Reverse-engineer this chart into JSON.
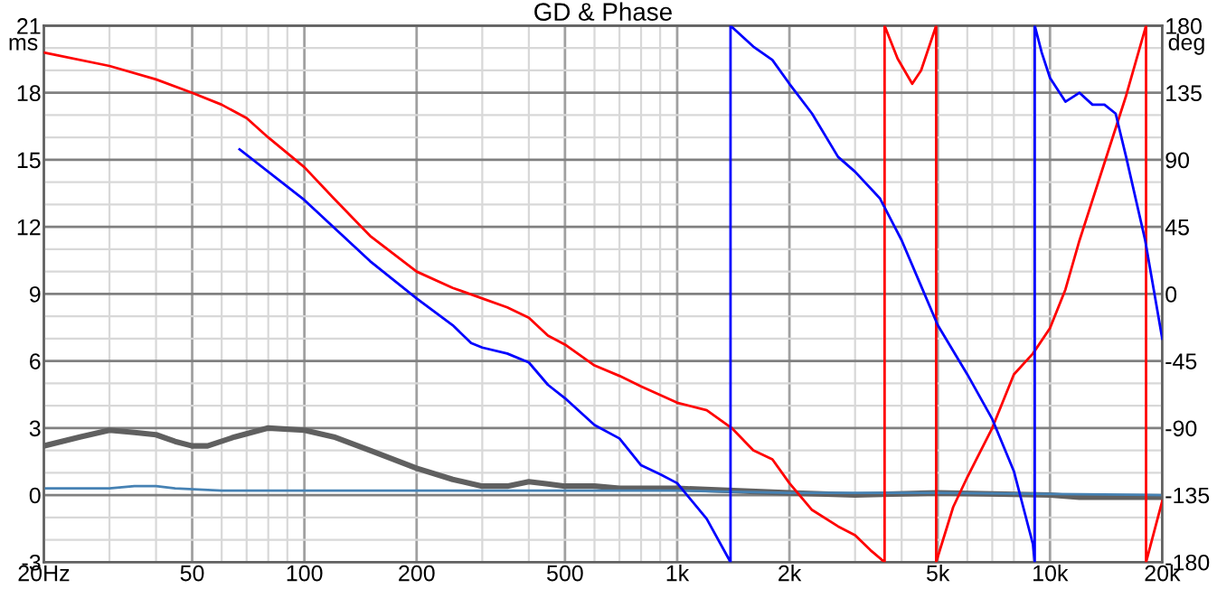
{
  "chart_data": {
    "type": "line",
    "title": "GD & Phase",
    "ylabel": "ms",
    "y2label": "deg",
    "log": "x",
    "grid": true,
    "marker": "none",
    "line_style": "solid",
    "xlim": [
      20,
      20000
    ],
    "xticks": [
      {
        "value": 20,
        "label": "20Hz"
      },
      {
        "value": 30,
        "label": null
      },
      {
        "value": 40,
        "label": null
      },
      50,
      {
        "value": 60,
        "label": null
      },
      {
        "value": 70,
        "label": null
      },
      {
        "value": 80,
        "label": null
      },
      {
        "value": 90,
        "label": null
      },
      100,
      200,
      {
        "value": 300,
        "label": null
      },
      {
        "value": 400,
        "label": null
      },
      500,
      {
        "value": 600,
        "label": null
      },
      {
        "value": 700,
        "label": null
      },
      {
        "value": 800,
        "label": null
      },
      {
        "value": 900,
        "label": null
      },
      {
        "value": 1000,
        "label": "1k"
      },
      {
        "value": 2000,
        "label": "2k"
      },
      {
        "value": 3000,
        "label": null
      },
      {
        "value": 4000,
        "label": null
      },
      {
        "value": 5000,
        "label": "5k"
      },
      {
        "value": 6000,
        "label": null
      },
      {
        "value": 7000,
        "label": null
      },
      {
        "value": 8000,
        "label": null
      },
      {
        "value": 9000,
        "label": null
      },
      {
        "value": 10000,
        "label": "10k"
      },
      {
        "value": 20000,
        "label": "20k"
      }
    ],
    "ylim": [
      -3,
      21
    ],
    "yticks": [
      -3,
      {
        "value": -2,
        "label": null
      },
      {
        "value": -1,
        "label": null
      },
      0,
      {
        "value": 1,
        "label": null
      },
      {
        "value": 2,
        "label": null
      },
      3,
      {
        "value": 4,
        "label": null
      },
      {
        "value": 5,
        "label": null
      },
      6,
      {
        "value": 7,
        "label": null
      },
      {
        "value": 8,
        "label": null
      },
      9,
      {
        "value": 10,
        "label": null
      },
      {
        "value": 11,
        "label": null
      },
      12,
      {
        "value": 13,
        "label": null
      },
      {
        "value": 14,
        "label": null
      },
      15,
      {
        "value": 16,
        "label": null
      },
      {
        "value": 17,
        "label": null
      },
      18,
      {
        "value": 19,
        "label": null
      },
      {
        "value": 20,
        "label": null
      },
      21
    ],
    "y2lim": [
      -180,
      180
    ],
    "y2ticks": [
      -180,
      -135,
      -90,
      -45,
      0,
      45,
      90,
      135,
      180
    ],
    "series": [
      {
        "color": "#606060",
        "x": [
          20,
          25,
          30,
          35,
          40,
          45,
          50,
          55,
          65,
          80,
          100,
          120,
          150,
          200,
          250,
          300,
          350,
          400,
          450,
          500,
          600,
          700,
          1000,
          2000,
          3000,
          5000,
          10000,
          12000,
          20000
        ],
        "values": [
          2.2,
          2.6,
          2.9,
          2.8,
          2.7,
          2.4,
          2.2,
          2.2,
          2.6,
          3.0,
          2.9,
          2.6,
          2.0,
          1.2,
          0.7,
          0.4,
          0.4,
          0.6,
          0.5,
          0.4,
          0.4,
          0.3,
          0.3,
          0.1,
          0.0,
          0.1,
          0.0,
          -0.1,
          -0.1
        ]
      },
      {
        "color": "#4682b4",
        "x": [
          20,
          30,
          35,
          40,
          45,
          60,
          100,
          500,
          1000,
          2000,
          5000,
          20000
        ],
        "values": [
          0.3,
          0.3,
          0.4,
          0.4,
          0.3,
          0.2,
          0.2,
          0.2,
          0.2,
          0.1,
          0.1,
          0.0
        ]
      },
      {
        "color": "#ff0000",
        "axis": "y2",
        "x": [
          20,
          30,
          40,
          50,
          60,
          70,
          80,
          100,
          120,
          150,
          200,
          250,
          300,
          350,
          400,
          450,
          500,
          600,
          700,
          800,
          1000,
          1200,
          1400,
          1600,
          1800,
          2000,
          2300,
          2700,
          3000,
          3300,
          3600,
          3600,
          3900,
          4270,
          4510,
          4950,
          4950,
          5500,
          6000,
          7000,
          8000,
          9000,
          10000,
          11000,
          12000,
          14000,
          16000,
          18100,
          18100,
          20000
        ],
        "values": [
          162,
          153,
          144,
          135,
          127,
          118,
          105,
          85,
          64,
          39,
          15,
          4,
          -3,
          -9,
          -16,
          -28,
          -34,
          -48,
          -55,
          -62,
          -73,
          -78,
          -90,
          -105,
          -111,
          -127,
          -145,
          -156,
          -162,
          -172,
          -180,
          180,
          158,
          141,
          150,
          180,
          -180,
          -143,
          -123,
          -90,
          -54,
          -40,
          -23,
          3,
          36,
          88,
          133,
          180,
          -180,
          -139
        ]
      },
      {
        "color": "#0000ff",
        "axis": "y2",
        "x": [
          67,
          100,
          150,
          200,
          250,
          280,
          300,
          350,
          400,
          450,
          500,
          600,
          700,
          800,
          900,
          1000,
          1200,
          1390,
          1390,
          1600,
          1800,
          2000,
          2300,
          2700,
          3000,
          3500,
          4000,
          5000,
          6000,
          7000,
          8000,
          9000,
          9100,
          9100,
          9500,
          10000,
          11000,
          12000,
          13000,
          14000,
          15000,
          16000,
          18000,
          20000
        ],
        "values": [
          97,
          63,
          22,
          -3,
          -21,
          -33,
          -36,
          -40,
          -46,
          -61,
          -70,
          -88,
          -97,
          -115,
          -121,
          -127,
          -151,
          -180,
          180,
          166,
          157,
          141,
          121,
          92,
          82,
          64,
          36,
          -21,
          -54,
          -84,
          -119,
          -168,
          -180,
          180,
          162,
          145,
          129,
          135,
          127,
          127,
          121,
          92,
          36,
          -30
        ]
      }
    ]
  }
}
